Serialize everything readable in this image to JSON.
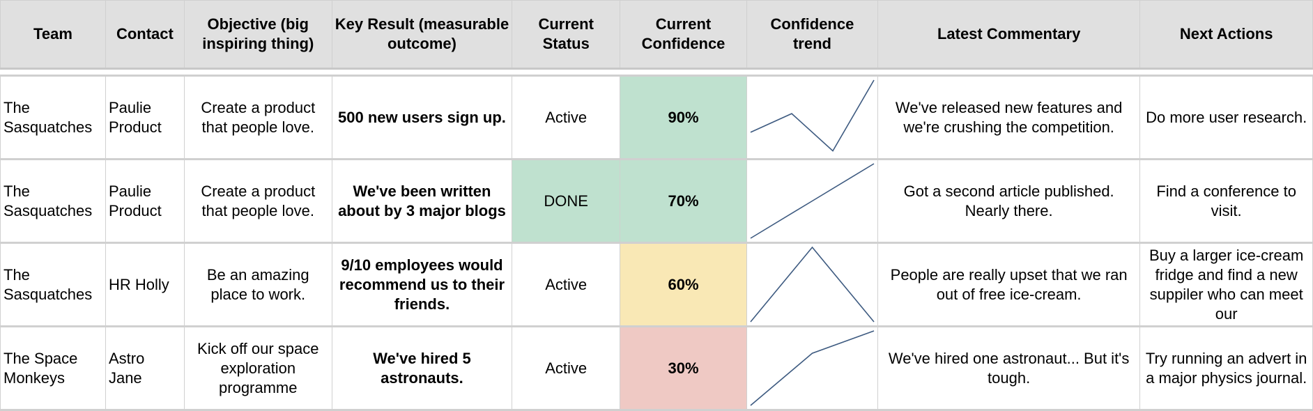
{
  "headers": {
    "team": "Team",
    "contact": "Contact",
    "objective": "Objective (big inspiring thing)",
    "key_result": "Key Result (measurable outcome)",
    "status": "Current Status",
    "confidence": "Current Confidence",
    "trend": "Confidence trend",
    "commentary": "Latest Commentary",
    "next_actions": "Next Actions"
  },
  "colors": {
    "header_bg": "#e0e0e0",
    "green": "#bfe1cf",
    "yellow": "#f9e8b5",
    "red": "#efc9c4",
    "sparkline": "#3d5a80"
  },
  "rows": [
    {
      "team": "The Sasquatches",
      "contact": "Paulie Product",
      "objective": "Create a product that people love.",
      "key_result": "500 new users sign up.",
      "status": "Active",
      "status_color": "",
      "confidence": "90%",
      "confidence_color": "green",
      "trend": [
        0.3,
        0.55,
        0.05,
        1.0
      ],
      "commentary": "We've released new features and we're crushing the competition.",
      "next_actions": "Do more user research."
    },
    {
      "team": "The Sasquatches",
      "contact": "Paulie Product",
      "objective": "Create a product that people love.",
      "key_result": "We've been written about by 3 major blogs",
      "status": "DONE",
      "status_color": "green",
      "confidence": "70%",
      "confidence_color": "green",
      "trend": [
        0.0,
        0.5,
        1.0
      ],
      "commentary": "Got a second article published. Nearly there.",
      "next_actions": "Find a conference to visit."
    },
    {
      "team": "The Sasquatches",
      "contact": "HR Holly",
      "objective": "Be an amazing place to work.",
      "key_result": "9/10 employees would recommend us to their friends.",
      "status": "Active",
      "status_color": "",
      "confidence": "60%",
      "confidence_color": "yellow",
      "trend": [
        0.0,
        1.0,
        0.0
      ],
      "commentary": "People are really upset that we ran out of free ice-cream.",
      "next_actions": "Buy a larger ice-cream fridge and find a new suppiler who can meet our"
    },
    {
      "team": "The Space Monkeys",
      "contact": "Astro Jane",
      "objective": "Kick off our space exploration programme",
      "key_result": "We've hired 5 astronauts.",
      "status": "Active",
      "status_color": "",
      "confidence": "30%",
      "confidence_color": "red",
      "trend": [
        0.0,
        0.7,
        1.0
      ],
      "commentary": "We've hired one astronaut... But it's tough.",
      "next_actions": "Try running an advert in a major physics journal."
    }
  ]
}
